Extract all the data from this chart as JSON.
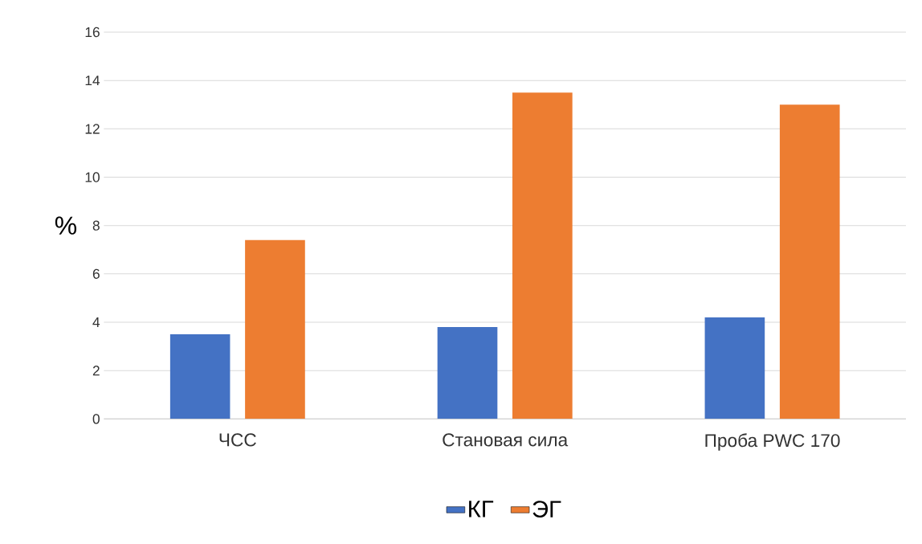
{
  "chart_data": {
    "type": "bar",
    "ylabel": "%",
    "categories": [
      "ЧСС",
      "Становая сила",
      "Проба PWC 170"
    ],
    "series": [
      {
        "name": "КГ",
        "color": "#4472c4",
        "values": [
          3.5,
          3.8,
          4.2
        ]
      },
      {
        "name": "ЭГ",
        "color": "#ed7d31",
        "values": [
          7.4,
          13.5,
          13.0
        ]
      }
    ],
    "ylim": [
      0,
      16
    ],
    "yticks": [
      0,
      2,
      4,
      6,
      8,
      10,
      12,
      14,
      16
    ],
    "grid": "y",
    "legend": "bottom"
  }
}
